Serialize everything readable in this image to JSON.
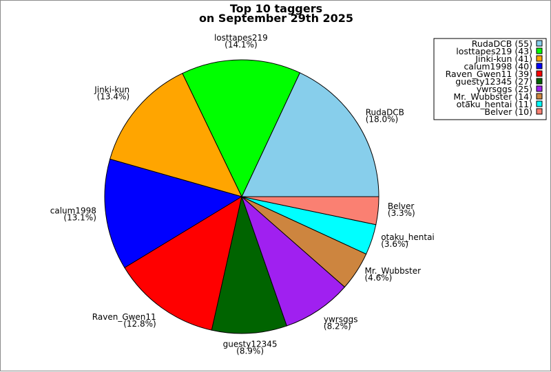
{
  "chart_data": {
    "type": "pie",
    "title": "Top 10 taggers",
    "subtitle": "on September 29th 2025",
    "legend_position": "top-right",
    "slices": [
      {
        "name": "RudaDCB",
        "value": 55,
        "percent": "18.0%",
        "color": "#87ceeb"
      },
      {
        "name": "losttapes219",
        "value": 43,
        "percent": "14.1%",
        "color": "#00ff00"
      },
      {
        "name": "Jinki-kun",
        "value": 41,
        "percent": "13.4%",
        "color": "#ffa500"
      },
      {
        "name": "calum1998",
        "value": 40,
        "percent": "13.1%",
        "color": "#0000ff"
      },
      {
        "name": "Raven_Gwen11",
        "value": 39,
        "percent": "12.8%",
        "color": "#ff0000"
      },
      {
        "name": "guesty12345",
        "value": 27,
        "percent": "8.9%",
        "color": "#006400"
      },
      {
        "name": "ywrsggs",
        "value": 25,
        "percent": "8.2%",
        "color": "#a020f0"
      },
      {
        "name": "Mr._Wubbster",
        "value": 14,
        "percent": "4.6%",
        "color": "#cd853f"
      },
      {
        "name": "otaku_hentai",
        "value": 11,
        "percent": "3.6%",
        "color": "#00ffff"
      },
      {
        "name": "Belver",
        "value": 10,
        "percent": "3.3%",
        "color": "#fa8072"
      }
    ]
  }
}
